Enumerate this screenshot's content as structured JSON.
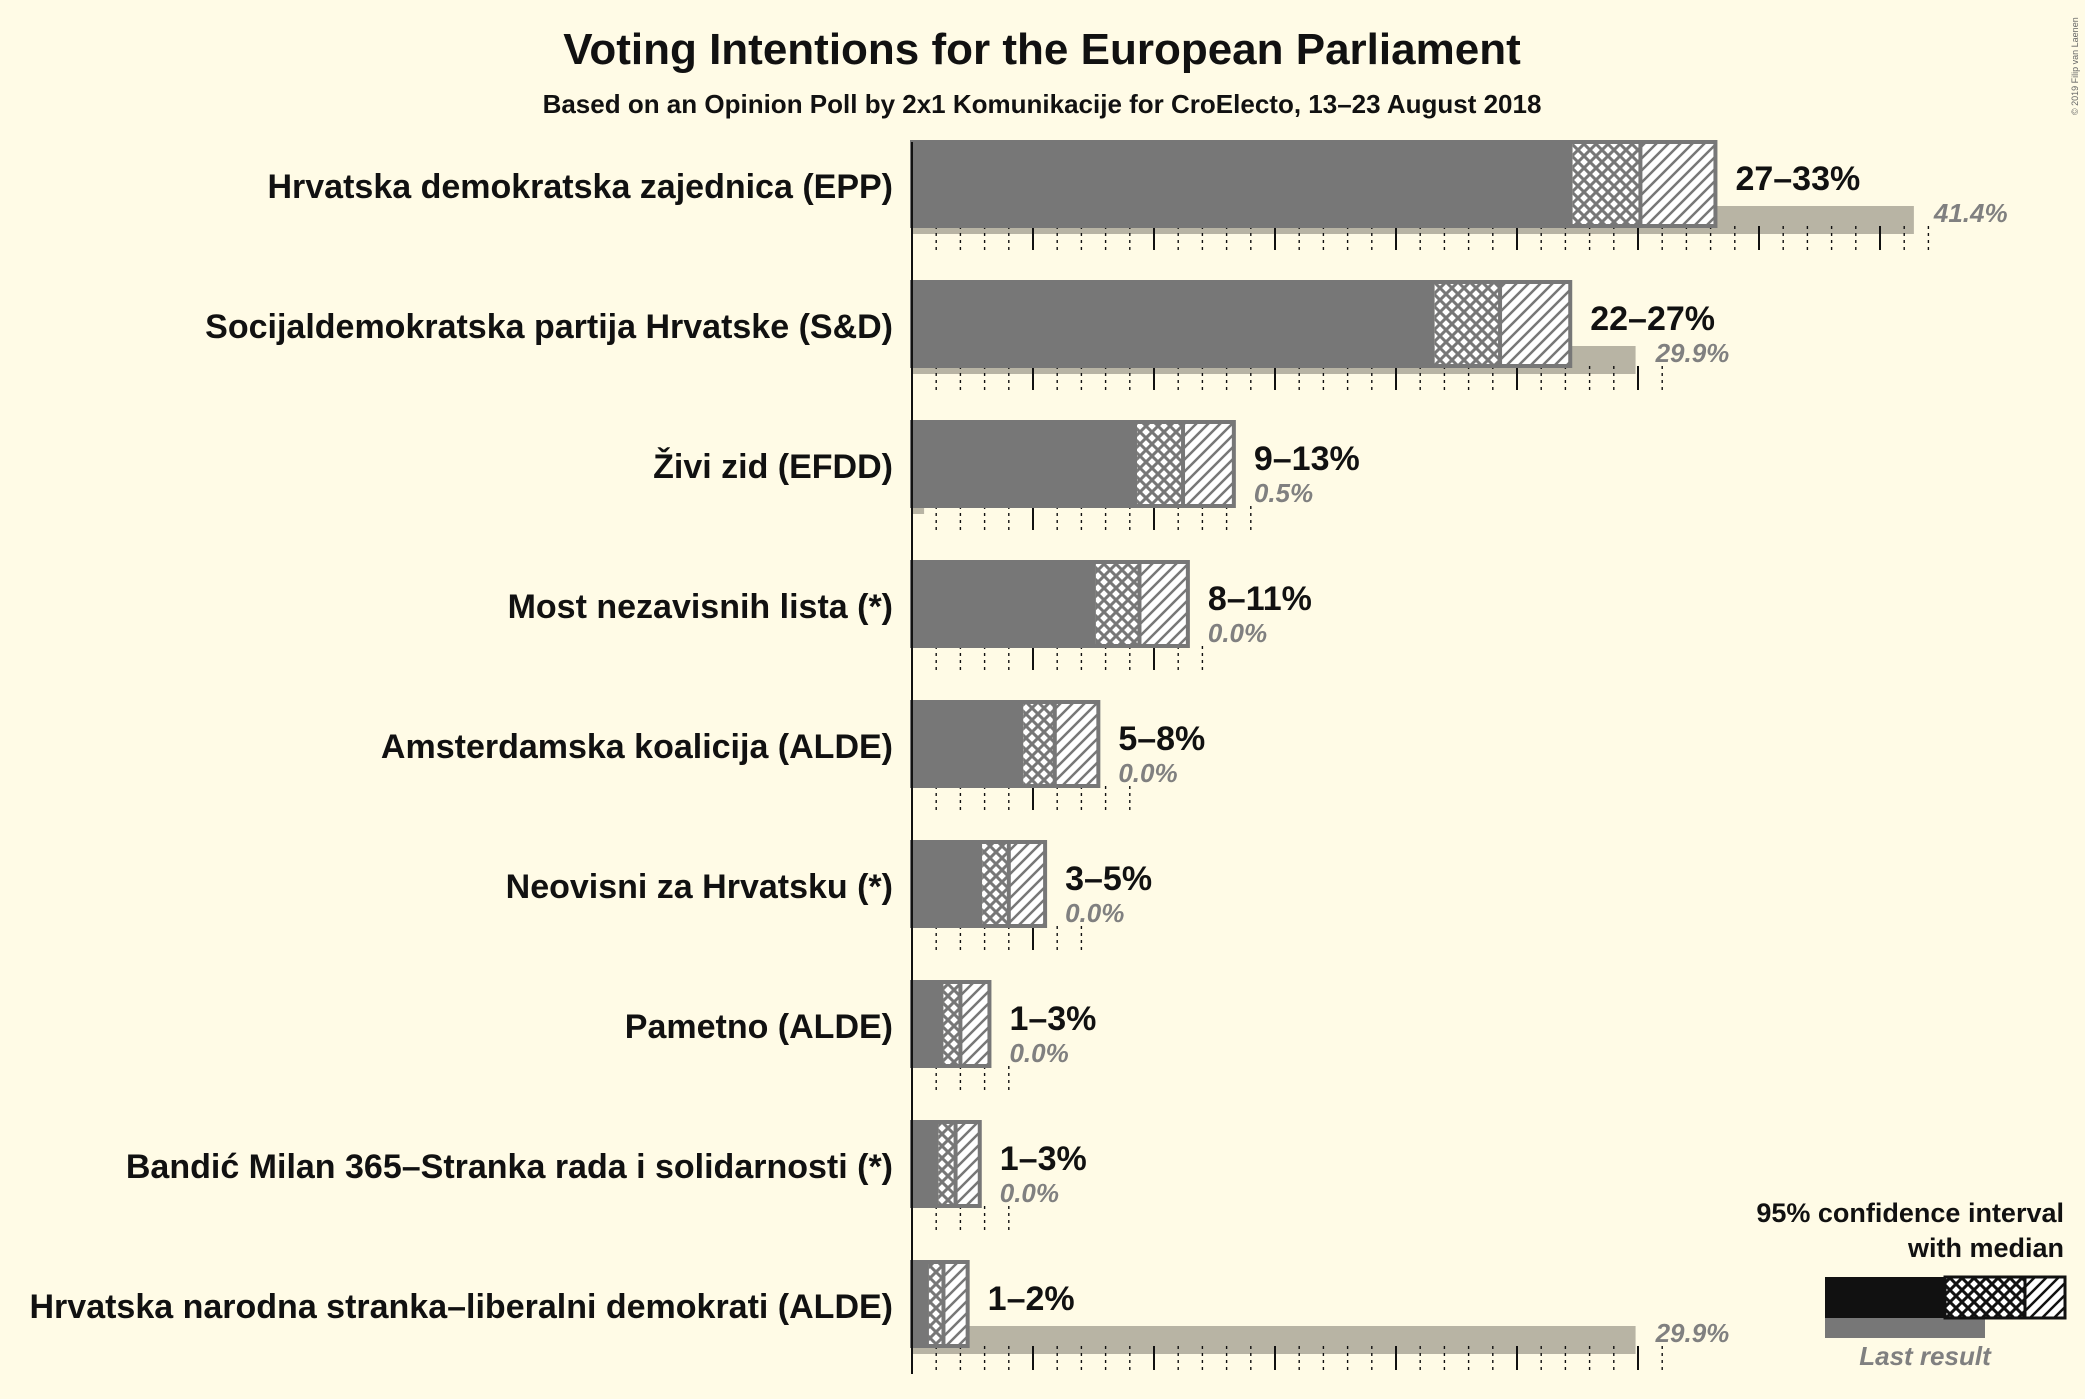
{
  "chart_data": {
    "type": "bar",
    "title": "Voting Intentions for the European Parliament",
    "subtitle": "Based on an Opinion Poll by 2x1 Komunikacije for CroElecto, 13–23 August 2018",
    "copyright": "© 2019 Filip van Laenen",
    "xlim": [
      0,
      42
    ],
    "grid": true,
    "legend": {
      "placement": "bottom-right",
      "line1": "95% confidence interval",
      "line2": "with median",
      "last_result": "Last result"
    },
    "colors": {
      "bar": "#777777",
      "last_result": "#b8b4a4",
      "background": "#fffbe6",
      "legend_bar": "#111111"
    },
    "parties": [
      {
        "name": "Hrvatska demokratska zajednica (EPP)",
        "low": 27.3,
        "median": 30.1,
        "high": 33.2,
        "range_label": "27–33%",
        "last": 41.4,
        "last_label": "41.4%"
      },
      {
        "name": "Socijaldemokratska partija Hrvatske (S&D)",
        "low": 21.6,
        "median": 24.3,
        "high": 27.2,
        "range_label": "22–27%",
        "last": 29.9,
        "last_label": "29.9%"
      },
      {
        "name": "Živi zid (EFDD)",
        "low": 9.3,
        "median": 11.2,
        "high": 13.3,
        "range_label": "9–13%",
        "last": 0.5,
        "last_label": "0.5%"
      },
      {
        "name": "Most nezavisnih lista (*)",
        "low": 7.6,
        "median": 9.4,
        "high": 11.4,
        "range_label": "8–11%",
        "last": 0.0,
        "last_label": "0.0%"
      },
      {
        "name": "Amsterdamska koalicija (ALDE)",
        "low": 4.6,
        "median": 5.9,
        "high": 7.7,
        "range_label": "5–8%",
        "last": 0.0,
        "last_label": "0.0%"
      },
      {
        "name": "Neovisni za Hrvatsku (*)",
        "low": 2.9,
        "median": 4.0,
        "high": 5.5,
        "range_label": "3–5%",
        "last": 0.0,
        "last_label": "0.0%"
      },
      {
        "name": "Pametno (ALDE)",
        "low": 1.3,
        "median": 2.0,
        "high": 3.2,
        "range_label": "1–3%",
        "last": 0.0,
        "last_label": "0.0%"
      },
      {
        "name": "Bandić Milan 365–Stranka rada i solidarnosti (*)",
        "low": 1.1,
        "median": 1.8,
        "high": 2.8,
        "range_label": "1–3%",
        "last": 0.0,
        "last_label": "0.0%"
      },
      {
        "name": "Hrvatska narodna stranka–liberalni demokrati (ALDE)",
        "low": 0.7,
        "median": 1.3,
        "high": 2.3,
        "range_label": "1–2%",
        "last": 29.9,
        "last_label": "29.9%"
      }
    ]
  }
}
